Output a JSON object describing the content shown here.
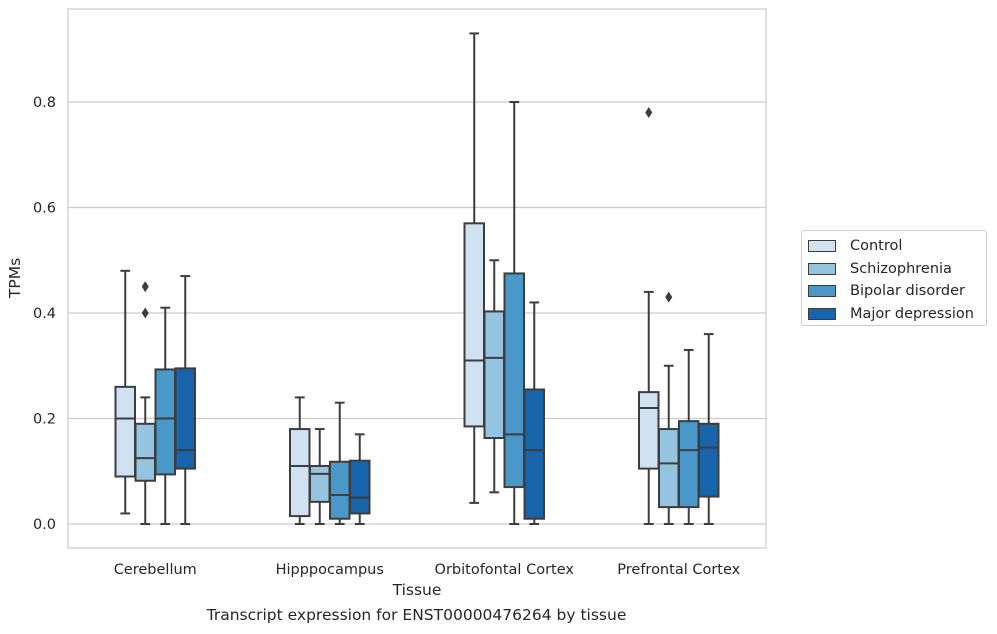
{
  "chart_data": {
    "type": "box",
    "caption": "Transcript expression for ENST00000476264 by tissue",
    "xlabel": "Tissue",
    "ylabel": "TPMs",
    "ylim": [
      -0.045,
      0.98
    ],
    "yticks": [
      0.0,
      0.2,
      0.4,
      0.6,
      0.8
    ],
    "ytick_labels": [
      "0.0",
      "0.2",
      "0.4",
      "0.6",
      "0.8"
    ],
    "grid": "y",
    "legend_position": "right",
    "categories": [
      "Cerebellum",
      "Hipppocampus",
      "Orbitofontal Cortex",
      "Prefrontal Cortex"
    ],
    "series": [
      {
        "name": "Control",
        "color": "#d0e1f2",
        "boxes": [
          {
            "whislo": 0.02,
            "q1": 0.09,
            "med": 0.2,
            "q3": 0.26,
            "whishi": 0.48,
            "fliers": []
          },
          {
            "whislo": 0.0,
            "q1": 0.015,
            "med": 0.11,
            "q3": 0.18,
            "whishi": 0.24,
            "fliers": []
          },
          {
            "whislo": 0.04,
            "q1": 0.185,
            "med": 0.31,
            "q3": 0.57,
            "whishi": 0.93,
            "fliers": []
          },
          {
            "whislo": 0.0,
            "q1": 0.105,
            "med": 0.22,
            "q3": 0.25,
            "whishi": 0.44,
            "fliers": [
              0.78
            ]
          }
        ]
      },
      {
        "name": "Schizophrenia",
        "color": "#94c4df",
        "boxes": [
          {
            "whislo": 0.0,
            "q1": 0.082,
            "med": 0.125,
            "q3": 0.19,
            "whishi": 0.24,
            "fliers": [
              0.4,
              0.45
            ]
          },
          {
            "whislo": 0.0,
            "q1": 0.042,
            "med": 0.095,
            "q3": 0.11,
            "whishi": 0.18,
            "fliers": []
          },
          {
            "whislo": 0.06,
            "q1": 0.163,
            "med": 0.315,
            "q3": 0.403,
            "whishi": 0.5,
            "fliers": []
          },
          {
            "whislo": 0.0,
            "q1": 0.032,
            "med": 0.115,
            "q3": 0.18,
            "whishi": 0.3,
            "fliers": [
              0.43
            ]
          }
        ]
      },
      {
        "name": "Bipolar disorder",
        "color": "#4a98c9",
        "boxes": [
          {
            "whislo": 0.0,
            "q1": 0.094,
            "med": 0.2,
            "q3": 0.293,
            "whishi": 0.41,
            "fliers": []
          },
          {
            "whislo": 0.0,
            "q1": 0.01,
            "med": 0.055,
            "q3": 0.118,
            "whishi": 0.23,
            "fliers": []
          },
          {
            "whislo": 0.0,
            "q1": 0.07,
            "med": 0.17,
            "q3": 0.475,
            "whishi": 0.8,
            "fliers": []
          },
          {
            "whislo": 0.0,
            "q1": 0.032,
            "med": 0.14,
            "q3": 0.195,
            "whishi": 0.33,
            "fliers": []
          }
        ]
      },
      {
        "name": "Major depression",
        "color": "#1764ab",
        "boxes": [
          {
            "whislo": 0.0,
            "q1": 0.105,
            "med": 0.14,
            "q3": 0.295,
            "whishi": 0.47,
            "fliers": []
          },
          {
            "whislo": 0.0,
            "q1": 0.02,
            "med": 0.05,
            "q3": 0.12,
            "whishi": 0.17,
            "fliers": []
          },
          {
            "whislo": 0.0,
            "q1": 0.01,
            "med": 0.14,
            "q3": 0.255,
            "whishi": 0.42,
            "fliers": []
          },
          {
            "whislo": 0.0,
            "q1": 0.052,
            "med": 0.145,
            "q3": 0.19,
            "whishi": 0.36,
            "fliers": []
          }
        ]
      }
    ]
  }
}
